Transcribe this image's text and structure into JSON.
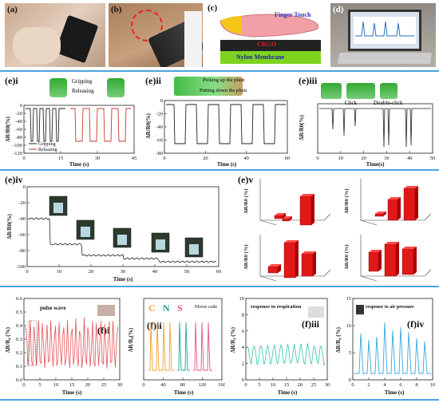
{
  "top_row": {
    "a_label": "(a)",
    "b_label": "(b)",
    "c_label": "(c)",
    "d_label": "(d)",
    "c_finger": "Finger Touch",
    "c_crgo": "CRGO",
    "c_nylon": "Nylon Membrane"
  },
  "e_i": {
    "label": "(e)i",
    "gripping_arrow": "Gripping",
    "releasing_arrow": "Releasing",
    "ylabel": "ΔR/R0(%)",
    "legend": [
      "Gripping",
      "Releasing"
    ],
    "yticks": [
      "0",
      "-20",
      "-40",
      "-60",
      "-80",
      "-100",
      "-120"
    ],
    "xticks": [
      "0",
      "15",
      "30",
      "45"
    ],
    "xlabel": "Time (s)"
  },
  "e_ii": {
    "label": "(e)ii",
    "pick_up": "Picking up the plum",
    "put_down": "Putting down the plum",
    "ylabel": "ΔR/R0(%)",
    "yticks": [
      "0",
      "-20",
      "-40",
      "-60",
      "-80"
    ],
    "xticks": [
      "0",
      "20",
      "40",
      "60"
    ],
    "xlabel": "Time (s)"
  },
  "e_iii": {
    "label": "(e)iii",
    "click": "Click",
    "double_click": "Double-click",
    "ylabel": "ΔR/R0(%)",
    "xticks": [
      "0",
      "10",
      "20",
      "30",
      "40",
      "50"
    ],
    "xlabel": "Time(s)"
  },
  "e_iv": {
    "label": "(e)iv",
    "ylabel": "ΔR/R0(%)",
    "yticks": [
      "0",
      "-20",
      "-40",
      "-60",
      "-80",
      "-100"
    ],
    "xticks": [
      "0",
      "10",
      "20",
      "30",
      "40",
      "50",
      "60"
    ],
    "xlabel": "Time (s)"
  },
  "e_v": {
    "label": "(e)v",
    "ylabels": [
      "ΔR/R0 (%)",
      "ΔR/R0 (%)",
      "ΔR/R0 (%)",
      "ΔR/R0 (%)"
    ]
  },
  "f_i": {
    "label": "(f)i",
    "title": "pulse wave",
    "ylabel": "ΔR/R₀ (%)",
    "yticks": [
      "0.6",
      "0.5",
      "0.4",
      "0.3",
      "0.2",
      "0.1",
      "0.0"
    ],
    "xticks": [
      "0",
      "5",
      "10",
      "15",
      "20",
      "25",
      "30"
    ],
    "xlabel": "Time (s)"
  },
  "f_ii": {
    "label": "(f)ii",
    "morse": "Morse code",
    "letters": [
      "C",
      "N",
      "S"
    ],
    "letter_colors": [
      "#f0a030",
      "#1aa58a",
      "#e0508a"
    ],
    "ylabel": "ΔR/R₀(%)",
    "xticks": [
      "0",
      "40",
      "80",
      "120",
      "160"
    ],
    "xlabel": "Time (s)"
  },
  "f_iii": {
    "label": "(f)iii",
    "title": "response to respiration",
    "ylabel": "ΔR/R₀ (%)",
    "yticks": [
      "10",
      "8",
      "6",
      "4",
      "2",
      "0"
    ],
    "xticks": [
      "0",
      "5",
      "10",
      "15",
      "20",
      "25",
      "30"
    ],
    "xlabel": "Time (s)"
  },
  "f_iv": {
    "label": "(f)iv",
    "title": "response to air pressure",
    "ylabel": "ΔR/R₀ (%)",
    "yticks": [
      "15",
      "10",
      "5",
      "0"
    ],
    "xticks": [
      "0",
      "2",
      "4",
      "6",
      "8",
      "10"
    ],
    "xlabel": "Time (s)"
  },
  "colors": {
    "divider": "#4aa3df",
    "gripping": "#222222",
    "releasing": "#c0392b",
    "bar_red": "#e01818",
    "pulse": "#e8535a",
    "resp": "#2ec4a6",
    "air": "#3aa7e0"
  }
}
